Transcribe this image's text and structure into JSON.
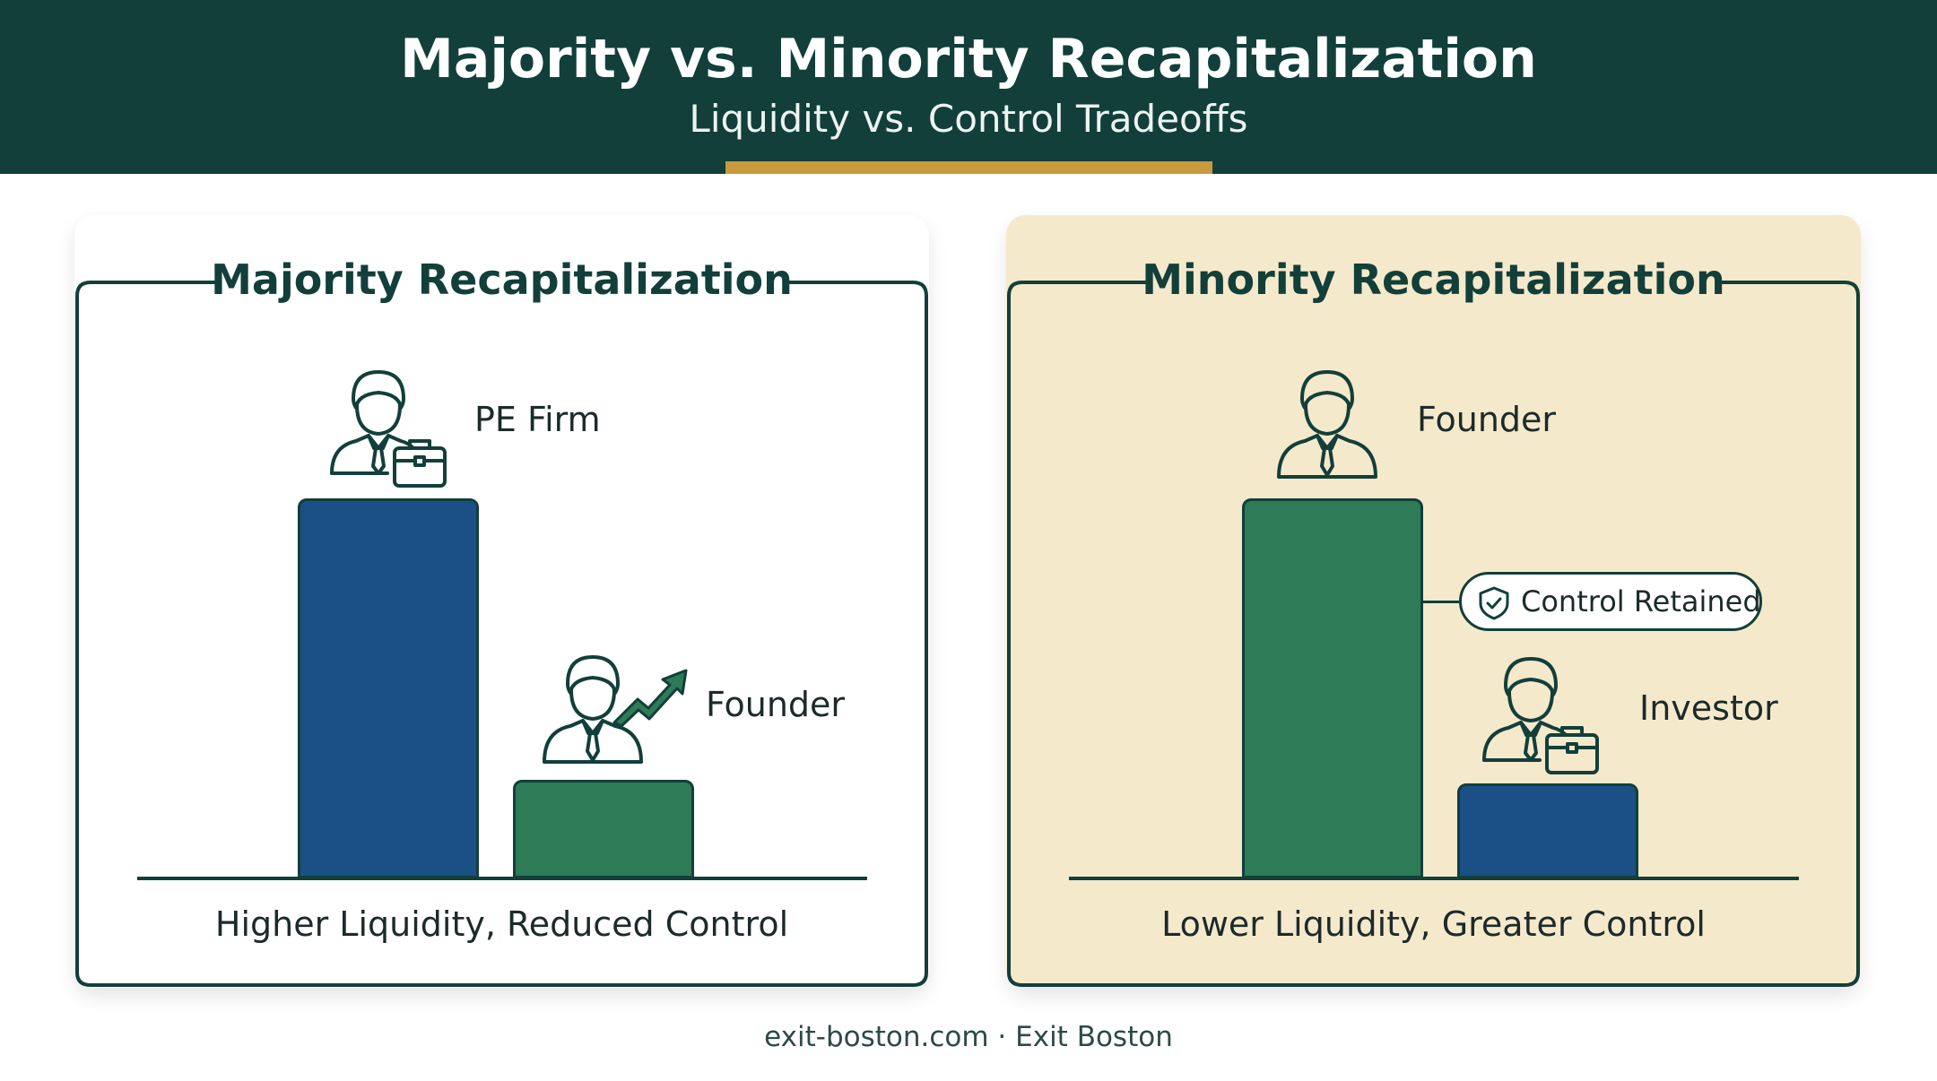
{
  "header": {
    "title": "Majority vs. Minority Recapitalization",
    "subtitle": "Liquidity vs. Control Tradeoffs"
  },
  "majority": {
    "title": "Majority Recapitalization",
    "top_party": "PE Firm",
    "bottom_party": "Founder",
    "caption": "Higher Liquidity, Reduced Control"
  },
  "minority": {
    "title": "Minority Recapitalization",
    "top_party": "Founder",
    "badge": "Control Retained",
    "bottom_party": "Investor",
    "caption": "Lower Liquidity, Greater Control"
  },
  "footer": {
    "text": "exit-boston.com · Exit Boston"
  },
  "colors": {
    "header_bg": "#123f3a",
    "accent_gold": "#c99a3d",
    "bar_blue": "#1b5087",
    "bar_green": "#2e7b57",
    "minority_panel_bg": "#f5e9cc"
  },
  "icons": [
    "person-with-briefcase-icon",
    "person-icon",
    "trend-up-arrow-icon",
    "shield-check-icon"
  ]
}
